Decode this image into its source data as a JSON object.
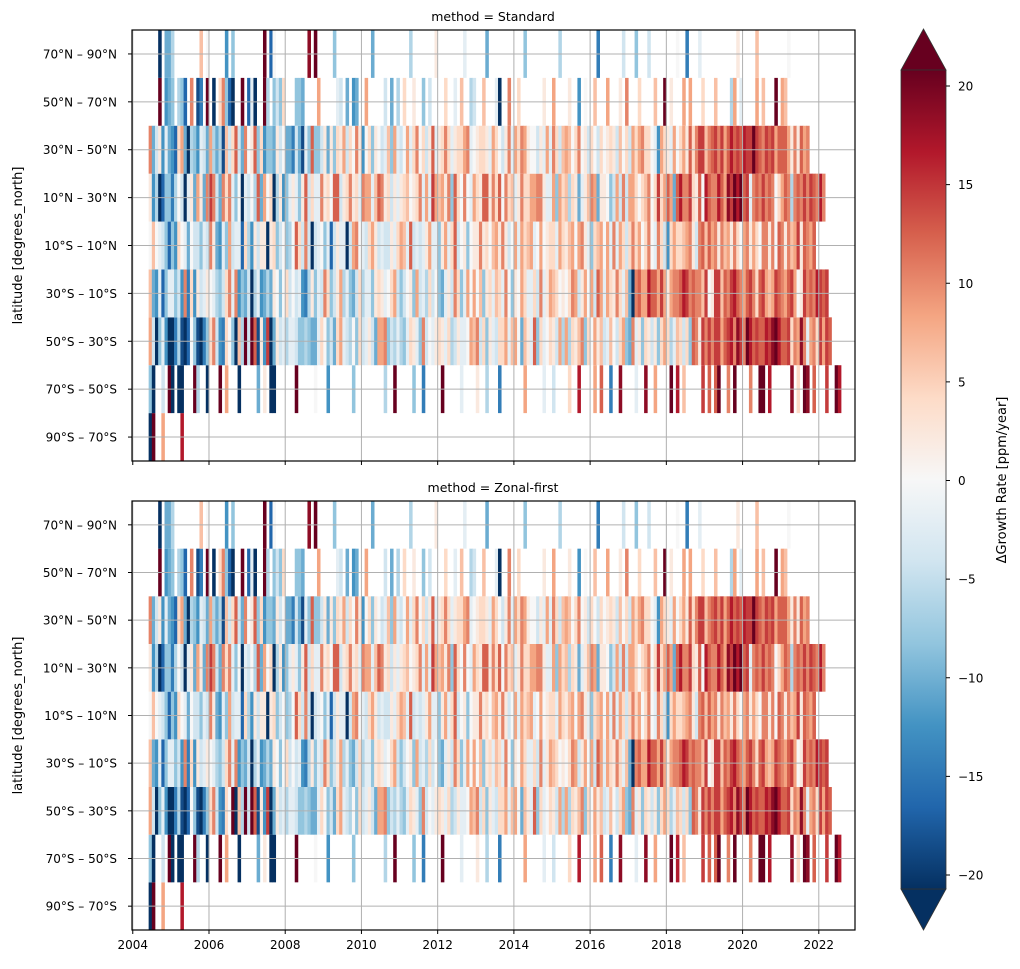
{
  "chart_data": {
    "type": "heatmap",
    "xlabel": "",
    "ylabel": "latitude [degrees_north]",
    "x_tick_labels": [
      "2004",
      "2006",
      "2008",
      "2010",
      "2012",
      "2014",
      "2016",
      "2018",
      "2020",
      "2022"
    ],
    "x_ticks": [
      2004,
      2006,
      2008,
      2010,
      2012,
      2014,
      2016,
      2018,
      2020,
      2022
    ],
    "xlim": [
      2003.98,
      2022.95
    ],
    "time_start": "2004-06",
    "time_step": "monthly",
    "n_months": 217,
    "y_categories": [
      "90°S – 70°S",
      "70°S – 50°S",
      "50°S – 30°S",
      "30°S – 10°S",
      "10°S – 10°N",
      "10°N – 30°N",
      "30°N – 50°N",
      "50°N – 70°N",
      "70°N – 90°N"
    ],
    "grid": true,
    "value_encoding": {
      "note": "one character per month; '.' = no data; letters a..w map to -22..+22 ppm/year in steps of 2 (l = 0)",
      "alphabet": "abcdefghijklmnopqrstuvw",
      "min": -22,
      "step": 2
    },
    "colorbar": {
      "label": "ΔGrowth Rate [ppm/year]",
      "cmap": "RdBu_r",
      "vmin": -20,
      "vmax": 20,
      "extend": "both",
      "ticks": [
        -20,
        -15,
        -10,
        -5,
        0,
        5,
        10,
        15,
        20
      ],
      "tick_labels": [
        "−20",
        "−15",
        "−10",
        "−5",
        "0",
        "5",
        "10",
        "15",
        "20"
      ],
      "colors": [
        "#053061",
        "#2166ac",
        "#4393c3",
        "#92c5de",
        "#d1e5f0",
        "#f7f7f7",
        "#fddbc7",
        "#f4a582",
        "#d6604d",
        "#b2182b",
        "#67001f"
      ]
    },
    "panels": [
      {
        "title": "method = Standard",
        "rows": [
          "bw..p.....t...........................................................................................................................................................................................................................",
          "hb..j.wa.bb...vi.xb...w.p...b.....g.m.bb......v.....l...f.......h...x.....i..v.....h..e.....v.....k....m..i...e.......p.....k..j....n..t....p.r..e..u....k..u..p....v.t.o.....s.r.rv..q.w....q..vv.t......u.n.vu.r...s..wt",
          "pjbhkfbaeicbdlhcaehnqjfenlhboivjvrcmfsagmjkikkjhhihggknlhjgnpkjilhnjkmjgppqhjikihknmkhqjlkmnmknijmkklpoqjnhmkjnnpkoplgomkrhnklnmjpipinmoqhnlpmojkoljnphgqkmhnmjmhnpnikonjnhrqmsqsqssprstqusqvtrsrrtsuvtrrsnqpuqkpqnspsr",
          "ogfkdhkkhjfqenfmjkmlkihjnqkqfhgjaikfgigmlhlnjljkfeimhkjqnhjmpikhgjnikkhmnmklnpjhjlmhpjkinjlhgkmjqnhkplplohmnkonkqlhmlpnkknjqkmponlmlnqpjmplpjrpkpnmqnkogaqrpptrrpspmpqqrtsqrqqoslmssorqstrqprsqnrspopsrqprsplmsqrqtsrs",
          "lolkjhdhfnlkgljjhkjqmgfkhpjkkdnifmjmmbmnhjlhilrnjqjbjklhkdjmkkbjpqlkjnpmjkjjmknpokrjkjkmpkkhmpknrjlmhlmmqmnlopmqmjlpkpnopklplmnnkpnmoplpqmkhnoplpkqkpnjnqnplnqlkqnjfnpnnopqmjqrorpqmqopmqnlpqmpnlqqmqlrqmqopsmrqpr",
          "mfibdhheiljbkmgpmgqsqjgqnqkhlbkjlirgplnbimfhkmkhmrjnkkqmnlrrjmnqmnkqppkorqmnjmkmnolmnqkpkspopmqhrnlqlkpnmrrmqnrlqnokmqnnppqqmkkphpnoinmgkmoqpgmmlhjpjqjppnlnoqlnsnprpgrtqqsnmrltrqqtrpusvtvrskqrqsqrqlnprqiqrqsqsrqtq",
          "qgjmfkgfdnpgbihfkjgpigicojnrjgqlmrhnfhhgmjlggejgckhrhhjmgmhnmpjnlqmflnhmljkohpkjlpknqlnjmrkmnqnkmnnpqklmnnmkpnljmqkpnqpmlljmkpkqnjopolnqlmjnljnlmnmjolnjpnpqnnlkfpnmkplnpmrnqssoqrsqsprtrsrtssvsrqsrsprrrpmqmrpq",
          "...w.fgh.ihd.q.ce.w.a.nqhda..v.dkb..wi.hjhn...hhg....p.....kj.g.fg..p.....j.g.i.n..m..h.j....n..k.o..ij..o...kb..q..n.......m..p....m..f.l..o...p...m.q...n....o..w.m...p.p...n...o....ip.k....p.o...w.po...",
          "...b.ggi........o.l.....f.h.........w.dl..........u.v.....h...........g...........i.......m........k......g...........h..........i...........e.......j...h...j........l..e...k...........m.....o.........l.........."
        ]
      },
      {
        "title": "method = Zonal-first",
        "rows": [
          "bw..p.....t...........................................................................................................................................................................................................................",
          "hb..j.wa.bb...vi.xb...w.p...b.....g.m.bb......v.....l...f.......h...x.....i..v.....h..e.....v.....k....m..i...e.......p.....k..j....n..t....p.r..e..u....k..u..p....v.t.o.....s.r.rv..q.w....q..vv.t......u.n.vu.r...s..wt",
          "pjbhkfbaeicbdlhcaehnqjfenlwboivjvrcmfsagmjkikkjhhihggknlhjgnpkjilhnjkmjgppqhjikihknmkhqjlkmnmknijmkklpoqjnhmkjnnpkoplgomkrhnklnmjpipinmoqhnlpmojkoljnphgqkmhnmjmhnpnikonjnhrqmsqsqssprstqusqvtrsrrtsuvtrrsnqpuqkpqnspsr",
          "ogfkdhkkhjfqenfmjkmlkihjnqkqfhgjaikfgigmlhlnjljkfeimhkjqnhjmpikhgjnikkhmnmklnpjhjlmhpjkinjlhgkmjqnhkplplohmnkonkqlhmlpnkknjqkmponlmlnqpjmplpjrpkpnmqnkogaqrpptrrpspmpqqrtsqrqqoslmssorqstrqprsqnrspopsrqprsplmsqrqtsrs",
          "lolkjhdhfnlkgljjhkjqmgfkhpjkkdnifmjmmbmnhjlhilrnjqjbjklhkdjmkkbjpqlkjnpmjkjjmknpokrjkjkmpkkhmpknrjlmhlmmqmnlopmqmjlpkpnopklplmnnkpnmoplpqmkhnoplpkqkpnjnqnplnqlkqnjfnpnnopqmjqrorpqmqopmqnlpqmpnlqqmqlrqmqopsmrqpr",
          "mfibdhheiljbkmgpmgqsqjgqnqkhlbkjlirgplnbimfhkmkhmrjnkkqmnlrrjmnqmnkqppkorqmnjmkmnolmnqkpkspopmqhrnlqlkpnmrrmqnrlqnokmqnnppqqmkkphpnoinmgkmoqpgmmlhjpjqjppnlnoqlnsnprpgrtqqsnmrltrqqtrpusvtvrskqrqsqrqlnprqiqrqsqsrqtq",
          "qgjmfkgfdnpgbihfkjgpigicojnrjgqlmrhnfhhgmjlggejgckhrhhjmgmhnmpjnlqmflnhmljkohpkjlpknqlnjmrkmnqnkmnnpqklmnnmkpnljmqkpnqpmlljmkpkqnjopolnqlmjnljnlmnmjolnjpnpqnnlkfpnmkplnpmrnqssoqrsqsprtrsrtssvsrqsrsprrrpmqmrpq",
          "...w.fgh.ihd.q.ce.w.a.nqhda..v.dkb..wi.hjhn...hhg....p.....kj.g.fg..p.....j.g.i.n..m..h.j....n..k.o..ij..o...kb..q..n.......m..p....m..f.l..o...p...m.q...n....o..w.m...p.p...n...o....ip.k....p.o...w.po...",
          "...b.ggi........o.l.....f.h.........w.dl..........u.v.....h...........g...........i.......m........k......g...........h..........i...........e.......j...h...j........l..e...k...........m.....o.........l.........."
        ]
      }
    ]
  }
}
